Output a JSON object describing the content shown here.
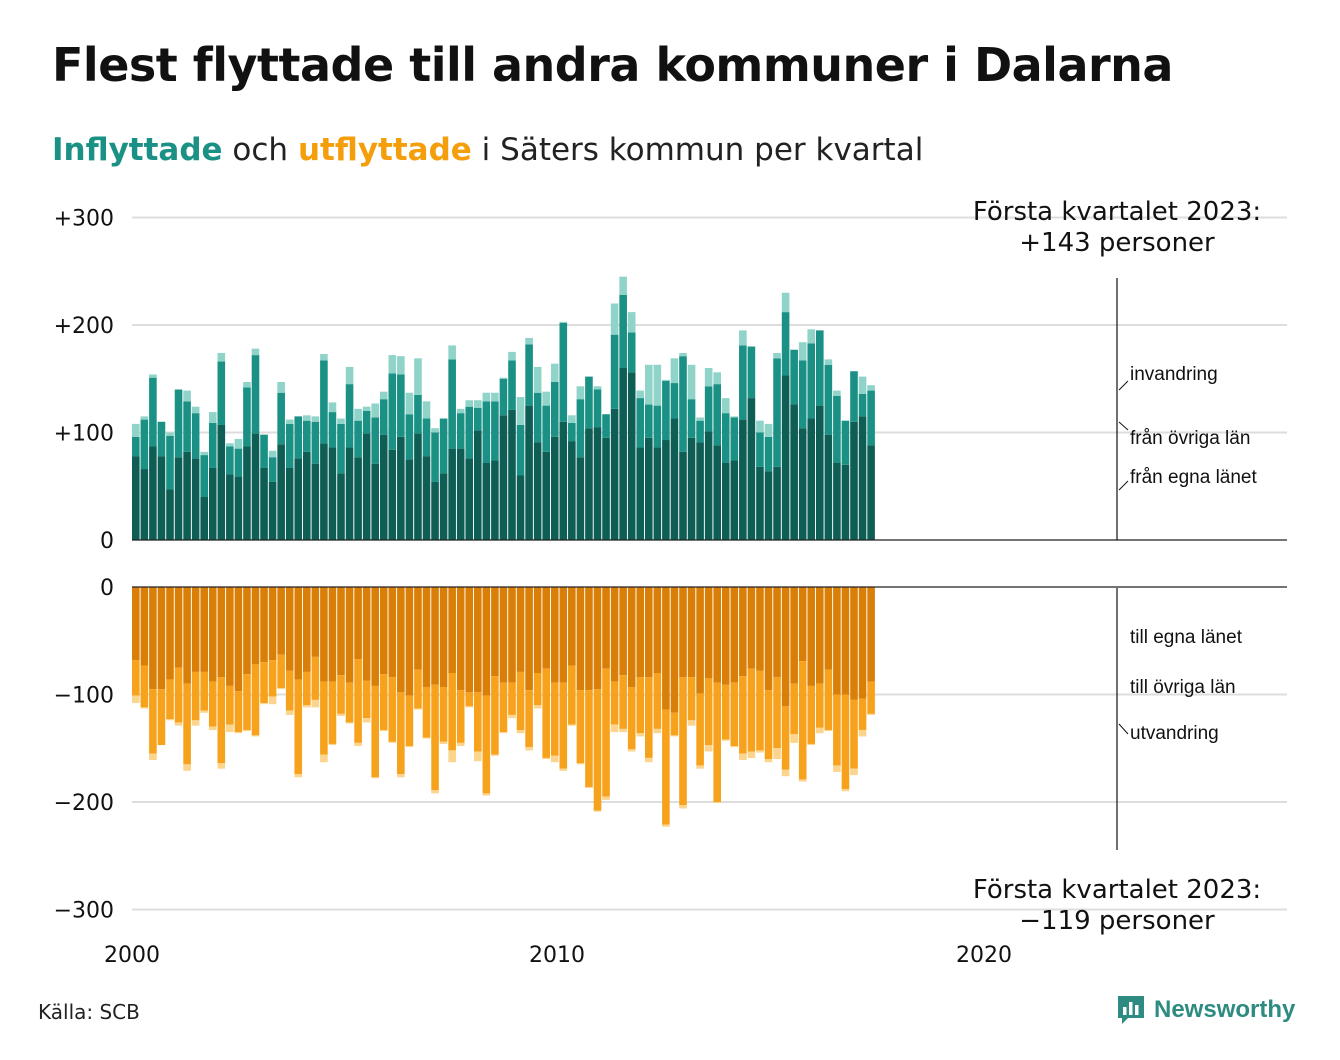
{
  "title": "Flest flyttade till andra kommuner i Dalarna",
  "subtitle": {
    "in_word": "Inflyttade",
    "and_word": "och",
    "out_word": "utflyttade",
    "rest": "i Säters kommun per kvartal"
  },
  "source": "Källa: SCB",
  "brand": "Newsworthy",
  "colors": {
    "in_own": "#0e5e55",
    "in_other": "#1b9185",
    "in_immigration": "#8fd3c9",
    "out_own": "#d97f08",
    "out_other": "#f7a21d",
    "out_emigration": "#fbd48d",
    "grid": "#dddddd",
    "axis": "#222222"
  },
  "chart_data": {
    "type": "bar",
    "stacked": true,
    "grid": true,
    "ylim": [
      -300,
      300
    ],
    "y_ticks": [
      "+300",
      "+200",
      "+100",
      "0",
      "0",
      "−100",
      "−200",
      "−300"
    ],
    "x_ticks": [
      "2000",
      "2010",
      "2020"
    ],
    "x_start": "2000 Q1",
    "x_end": "2023 Q1",
    "annotation_top": {
      "line1": "Första kvartalet 2023:",
      "line2": "+143 personer"
    },
    "annotation_bottom": {
      "line1": "Första kvartalet 2023:",
      "line2": "−119 personer"
    },
    "in_labels": [
      "invandring",
      "från övriga län",
      "från egna länet"
    ],
    "out_labels": [
      "till egna länet",
      "till övriga län",
      "utvandring"
    ],
    "in_own": [
      78,
      66,
      87,
      78,
      47,
      77,
      82,
      76,
      40,
      67,
      107,
      61,
      59,
      87,
      99,
      67,
      54,
      89,
      67,
      76,
      82,
      71,
      90,
      86,
      62,
      86,
      77,
      99,
      71,
      98,
      84,
      96,
      75,
      99,
      78,
      54,
      62,
      85,
      85,
      76,
      102,
      72,
      74,
      116,
      121,
      60,
      125,
      91,
      82,
      96,
      110,
      92,
      77,
      104,
      105,
      95,
      122,
      160,
      156,
      86,
      95,
      86,
      93,
      113,
      82,
      95,
      91,
      101,
      88,
      72,
      74,
      112,
      132,
      68,
      64,
      68,
      153,
      126,
      104,
      113,
      125,
      98,
      72,
      70,
      110,
      115,
      88
    ],
    "in_other": [
      18,
      46,
      64,
      32,
      50,
      63,
      47,
      42,
      39,
      42,
      59,
      26,
      26,
      55,
      73,
      31,
      23,
      48,
      41,
      39,
      29,
      39,
      77,
      33,
      46,
      59,
      34,
      21,
      43,
      33,
      71,
      58,
      42,
      36,
      35,
      46,
      51,
      83,
      33,
      48,
      21,
      57,
      55,
      34,
      46,
      47,
      57,
      46,
      43,
      51,
      92,
      17,
      54,
      48,
      35,
      22,
      69,
      68,
      37,
      46,
      31,
      39,
      55,
      33,
      89,
      36,
      20,
      42,
      57,
      46,
      40,
      69,
      48,
      32,
      32,
      101,
      59,
      51,
      63,
      70,
      70,
      65,
      62,
      41,
      47,
      21,
      51
    ],
    "in_immigration": [
      12,
      3,
      3,
      0,
      3,
      0,
      10,
      6,
      3,
      10,
      8,
      3,
      9,
      5,
      6,
      0,
      6,
      10,
      4,
      0,
      5,
      5,
      6,
      9,
      5,
      16,
      11,
      4,
      13,
      7,
      17,
      17,
      20,
      34,
      16,
      4,
      0,
      13,
      4,
      6,
      7,
      8,
      8,
      1,
      8,
      26,
      6,
      24,
      13,
      17,
      1,
      7,
      12,
      0,
      3,
      0,
      29,
      17,
      19,
      7,
      37,
      38,
      1,
      23,
      3,
      32,
      3,
      17,
      11,
      14,
      1,
      14,
      0,
      11,
      12,
      5,
      18,
      0,
      17,
      13,
      0,
      5,
      5,
      0,
      0,
      16,
      5
    ],
    "out_own": [
      -68,
      -73,
      -95,
      -95,
      -86,
      -75,
      -90,
      -79,
      -79,
      -88,
      -84,
      -92,
      -97,
      -81,
      -72,
      -70,
      -68,
      -63,
      -78,
      -86,
      -79,
      -65,
      -88,
      -88,
      -82,
      -89,
      -67,
      -87,
      -92,
      -81,
      -84,
      -98,
      -101,
      -77,
      -93,
      -91,
      -93,
      -80,
      -96,
      -98,
      -98,
      -101,
      -83,
      -89,
      -89,
      -79,
      -96,
      -80,
      -76,
      -89,
      -89,
      -73,
      -96,
      -96,
      -95,
      -76,
      -88,
      -82,
      -93,
      -84,
      -84,
      -80,
      -114,
      -117,
      -84,
      -84,
      -99,
      -85,
      -89,
      -91,
      -89,
      -83,
      -76,
      -78,
      -96,
      -84,
      -111,
      -90,
      -69,
      -92,
      -90,
      -77,
      -100,
      -100,
      -105,
      -104,
      -88
    ],
    "out_other": [
      -33,
      -39,
      -60,
      -52,
      -37,
      -51,
      -75,
      -45,
      -36,
      -42,
      -80,
      -36,
      -38,
      -52,
      -66,
      -38,
      -34,
      -31,
      -37,
      -88,
      -31,
      -40,
      -68,
      -58,
      -36,
      -37,
      -78,
      -35,
      -85,
      -52,
      -60,
      -76,
      -47,
      -36,
      -47,
      -98,
      -51,
      -72,
      -49,
      -13,
      -55,
      -91,
      -73,
      -46,
      -30,
      -54,
      -53,
      -30,
      -83,
      -68,
      -80,
      -55,
      -68,
      -90,
      -113,
      -119,
      -40,
      -50,
      -58,
      -52,
      -75,
      -52,
      -107,
      -21,
      -119,
      -40,
      -67,
      -62,
      -111,
      -51,
      -59,
      -72,
      -77,
      -74,
      -64,
      -66,
      -59,
      -47,
      -110,
      -54,
      -41,
      -56,
      -66,
      -88,
      -64,
      -29,
      -30
    ],
    "out_emigration": [
      -7,
      -1,
      -6,
      0,
      -1,
      -3,
      -6,
      -5,
      -2,
      -3,
      -5,
      -7,
      -1,
      -1,
      -1,
      -1,
      -7,
      -1,
      -4,
      -3,
      -2,
      -7,
      -7,
      -1,
      -2,
      -1,
      -3,
      -4,
      -1,
      -1,
      -1,
      -3,
      -1,
      -1,
      -1,
      -3,
      -2,
      -11,
      -3,
      -1,
      -9,
      -2,
      -1,
      -1,
      -3,
      -3,
      -3,
      -3,
      -1,
      -6,
      -2,
      -1,
      -1,
      -1,
      -1,
      -3,
      -7,
      -3,
      -2,
      -3,
      -4,
      -4,
      -2,
      -1,
      -3,
      -5,
      -3,
      -6,
      -1,
      -1,
      -1,
      -6,
      -6,
      -2,
      -3,
      -10,
      -6,
      -8,
      -2,
      -1,
      -5,
      -1,
      -6,
      -2,
      -6,
      -6,
      -1
    ]
  }
}
